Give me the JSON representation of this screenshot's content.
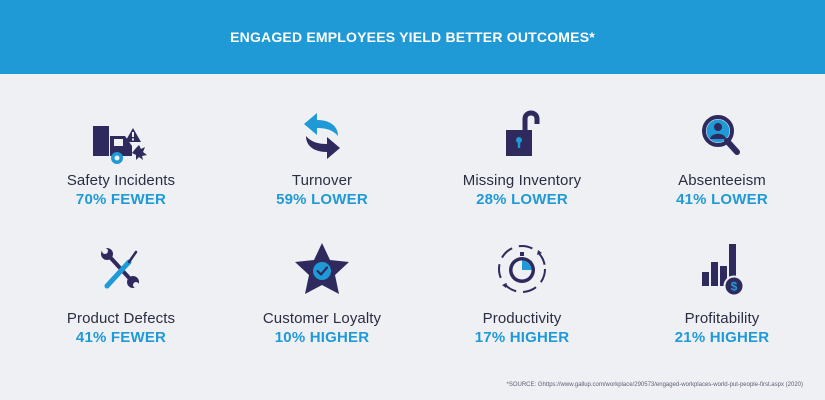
{
  "header": {
    "title": "ENGAGED EMPLOYEES YIELD BETTER OUTCOMES*"
  },
  "colors": {
    "banner": "#1f9ad6",
    "background": "#eef0f4",
    "icon_dark": "#2f2a5e",
    "icon_accent": "#1f9ad6",
    "label_text": "#2b2d42"
  },
  "metrics": [
    {
      "label": "Safety Incidents",
      "value": "70% FEWER",
      "icon": "truck-crash-warning-icon"
    },
    {
      "label": "Turnover",
      "value": "59% LOWER",
      "icon": "exchange-arrows-icon"
    },
    {
      "label": "Missing Inventory",
      "value": "28% LOWER",
      "icon": "unlocked-padlock-icon"
    },
    {
      "label": "Absenteeism",
      "value": "41% LOWER",
      "icon": "magnifier-person-icon"
    },
    {
      "label": "Product Defects",
      "value": "41% FEWER",
      "icon": "wrench-screwdriver-icon"
    },
    {
      "label": "Customer Loyalty",
      "value": "10% HIGHER",
      "icon": "star-check-icon"
    },
    {
      "label": "Productivity",
      "value": "17% HIGHER",
      "icon": "cycle-stopwatch-icon"
    },
    {
      "label": "Profitability",
      "value": "21% HIGHER",
      "icon": "bars-dollar-icon"
    }
  ],
  "footer": {
    "source": "*SOURCE: Ghttps://www.gallup.com/workplace/290573/engaged-workplaces-world-put-people-first.aspx (2020)"
  }
}
